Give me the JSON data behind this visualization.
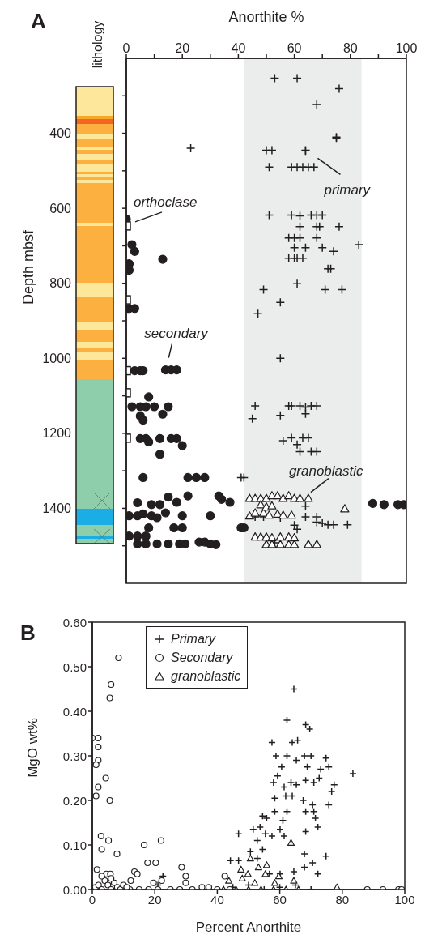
{
  "chart_data": [
    {
      "type": "scatter",
      "title": "A",
      "xlabel": "Anorthite %",
      "ylabel": "Depth mbsf",
      "xlim": [
        0,
        100
      ],
      "xticks": [
        0,
        {
          "value": 10,
          "label": null
        },
        20,
        {
          "value": 30,
          "label": null
        },
        40,
        {
          "value": 50,
          "label": null
        },
        60,
        {
          "value": 70,
          "label": null
        },
        80,
        {
          "value": 90,
          "label": null
        },
        100
      ],
      "ylim": [
        1600,
        200
      ],
      "yticks": [
        {
          "value": 300,
          "label": null
        },
        400,
        {
          "value": 500,
          "label": null
        },
        600,
        {
          "value": 700,
          "label": null
        },
        800,
        {
          "value": 900,
          "label": null
        },
        1000,
        {
          "value": 1100,
          "label": null
        },
        1200,
        {
          "value": 1300,
          "label": null
        },
        1400,
        {
          "value": 1500,
          "label": null
        }
      ],
      "bands": [
        {
          "axis": "x",
          "from": 42,
          "to": 84,
          "color": "#ebeded"
        }
      ],
      "annotations": [
        "lithology",
        {
          "text": "orthoclase",
          "x": 0,
          "y": 647
        },
        {
          "text": "primary",
          "x": 64,
          "y": 445
        },
        {
          "text": "secondary",
          "x": 16,
          "y": 1031
        },
        {
          "text": "granoblastic",
          "x": 65,
          "y": 1370
        }
      ],
      "series": [
        {
          "marker": "cross",
          "color": "#231f20",
          "x": [
            53,
            61,
            76,
            68,
            75,
            75,
            23,
            50,
            52,
            64,
            64,
            51,
            59,
            61,
            63,
            65,
            67,
            51,
            59,
            62,
            66,
            68,
            70,
            62,
            68,
            69,
            76,
            58,
            60,
            62,
            68,
            83,
            60,
            64,
            70,
            74,
            58,
            60,
            61,
            63,
            72,
            73,
            61,
            49,
            71,
            77,
            55,
            47,
            55,
            46,
            45,
            55,
            58,
            59,
            62,
            64,
            66,
            68,
            64,
            56,
            59,
            61,
            63,
            65,
            62,
            66,
            68,
            41,
            42,
            64,
            64,
            68,
            68,
            70,
            72,
            74,
            79,
            60,
            61,
            46,
            49,
            55,
            53
          ],
          "values": [
            253,
            253,
            281,
            323,
            410,
            412,
            440,
            445,
            445,
            445,
            447,
            490,
            490,
            490,
            490,
            490,
            490,
            618,
            618,
            620,
            618,
            618,
            618,
            649,
            649,
            649,
            649,
            679,
            679,
            679,
            679,
            697,
            705,
            705,
            705,
            715,
            733,
            733,
            733,
            733,
            761,
            761,
            801,
            817,
            817,
            817,
            851,
            881,
            1000,
            1127,
            1161,
            1152,
            1127,
            1127,
            1127,
            1130,
            1127,
            1127,
            1148,
            1220,
            1212,
            1230,
            1212,
            1212,
            1249,
            1249,
            1249,
            1318,
            1318,
            1394,
            1423,
            1423,
            1437,
            1440,
            1444,
            1444,
            1444,
            1445,
            1456,
            1423,
            1423,
            1425,
            1492
          ]
        },
        {
          "marker": "circle",
          "color": "#231f20",
          "x": [
            0,
            2,
            3,
            13,
            1,
            1,
            1,
            3,
            3,
            5,
            6,
            14,
            16,
            18,
            8,
            2,
            5,
            7,
            10,
            15,
            13,
            5,
            6,
            5,
            7,
            8,
            12,
            16,
            18,
            20,
            12,
            6,
            22,
            25,
            28,
            4,
            9,
            12,
            15,
            18,
            22,
            33,
            34,
            37,
            1,
            4,
            6,
            9,
            11,
            14,
            20,
            30,
            8,
            17,
            20,
            41,
            42,
            1,
            4,
            7,
            4,
            7,
            11,
            15,
            19,
            21,
            26,
            28,
            32,
            30,
            88,
            92,
            97,
            99
          ],
          "values": [
            629,
            697,
            715,
            736,
            748,
            765,
            867,
            867,
            1033,
            1033,
            1033,
            1031,
            1031,
            1031,
            1103,
            1129,
            1129,
            1129,
            1129,
            1129,
            1149,
            1154,
            1165,
            1214,
            1214,
            1223,
            1214,
            1214,
            1214,
            1233,
            1256,
            1318,
            1318,
            1318,
            1318,
            1385,
            1390,
            1390,
            1370,
            1384,
            1367,
            1367,
            1376,
            1384,
            1420,
            1420,
            1415,
            1420,
            1425,
            1412,
            1420,
            1420,
            1452,
            1452,
            1452,
            1452,
            1452,
            1474,
            1474,
            1474,
            1495,
            1495,
            1495,
            1495,
            1495,
            1495,
            1490,
            1490,
            1497,
            1495,
            1387,
            1390,
            1390,
            1390
          ]
        },
        {
          "marker": "square",
          "color": "#231f20",
          "x": [
            0,
            0,
            0,
            0,
            0
          ],
          "values": [
            647,
            844,
            1033,
            1092,
            1213
          ]
        },
        {
          "marker": "triangle",
          "color": "#231f20",
          "x": [
            44,
            46,
            48,
            50,
            52,
            54,
            56,
            58,
            60,
            62,
            65,
            78,
            44,
            46,
            49,
            51,
            54,
            56,
            59,
            48,
            50,
            52,
            46,
            48,
            50,
            52,
            55,
            58,
            60,
            50,
            52,
            55,
            58,
            60,
            65,
            68
          ],
          "values": [
            1373,
            1373,
            1373,
            1373,
            1366,
            1366,
            1373,
            1366,
            1373,
            1373,
            1373,
            1401,
            1420,
            1412,
            1412,
            1418,
            1415,
            1418,
            1418,
            1390,
            1396,
            1393,
            1476,
            1476,
            1476,
            1478,
            1476,
            1476,
            1478,
            1496,
            1496,
            1496,
            1496,
            1496,
            1496,
            1496
          ]
        }
      ]
    },
    {
      "type": "scatter",
      "title": "B",
      "xlabel": "Percent Anorthite",
      "ylabel": "MgO wt%",
      "xlim": [
        0,
        100
      ],
      "xticks": [
        0,
        20,
        40,
        60,
        80,
        100
      ],
      "ylim": [
        0,
        0.6
      ],
      "yticks": [
        {
          "value": 0,
          "label": "0.00"
        },
        {
          "value": 0.1,
          "label": "0.10"
        },
        {
          "value": 0.2,
          "label": "0.20"
        },
        {
          "value": 0.3,
          "label": "0.30"
        },
        {
          "value": 0.4,
          "label": "0.40"
        },
        {
          "value": 0.5,
          "label": "0.50"
        },
        {
          "value": 0.6,
          "label": "0.60"
        }
      ],
      "legend": "top left",
      "series": [
        {
          "name": "Primary",
          "marker": "cross",
          "color": "#231f20",
          "x": [
            64.5,
            62.3,
            68.3,
            69.6,
            57.5,
            64,
            65.7,
            58.8,
            62.3,
            67.9,
            70,
            74.8,
            60.6,
            65.3,
            68.8,
            73.1,
            75.7,
            83.4,
            58,
            59.3,
            61.4,
            63.6,
            65.3,
            68.3,
            70.9,
            72.6,
            77.4,
            76.6,
            58.4,
            61.9,
            64,
            67.5,
            70.5,
            75.7,
            58.4,
            62.3,
            68.3,
            70.9,
            54.5,
            55.8,
            61,
            71.4,
            51.5,
            53.7,
            60.1,
            72.2,
            46.8,
            68.3,
            55.4,
            52.8,
            57.5,
            61.4,
            50.6,
            54.5,
            44.2,
            46.8,
            52.8,
            67.9,
            74.8,
            70.5,
            67.9,
            72.2,
            22.6,
            64.5,
            60.1,
            56.7,
            42,
            45,
            50,
            55,
            60,
            65,
            70,
            21
          ],
          "values": [
            0.45,
            0.38,
            0.37,
            0.36,
            0.33,
            0.33,
            0.335,
            0.3,
            0.3,
            0.3,
            0.3,
            0.295,
            0.275,
            0.29,
            0.275,
            0.27,
            0.275,
            0.26,
            0.24,
            0.255,
            0.23,
            0.24,
            0.235,
            0.245,
            0.24,
            0.25,
            0.235,
            0.22,
            0.205,
            0.21,
            0.21,
            0.2,
            0.19,
            0.19,
            0.175,
            0.175,
            0.175,
            0.175,
            0.165,
            0.16,
            0.155,
            0.16,
            0.135,
            0.14,
            0.135,
            0.14,
            0.125,
            0.13,
            0.125,
            0.11,
            0.12,
            0.12,
            0.085,
            0.09,
            0.065,
            0.065,
            0.07,
            0.08,
            0.075,
            0.06,
            0.05,
            0.035,
            0.03,
            0.04,
            0.035,
            0.035,
            0,
            0.005,
            0.01,
            0,
            0.005,
            0.01,
            0,
            0.01
          ]
        },
        {
          "name": "Secondary",
          "marker": "circle",
          "color": "#231f20",
          "x": [
            0,
            1.9,
            1.9,
            1.9,
            1.2,
            1.9,
            1.2,
            4.3,
            5.6,
            6,
            5.6,
            8.4,
            2.8,
            5.2,
            3,
            7.9,
            16.6,
            22,
            17.7,
            20.3,
            28.6,
            29.9,
            29.9,
            13.5,
            14.4,
            1.5,
            4.5,
            5.8,
            12.3,
            19.6,
            22.2,
            35.1,
            37.3,
            42.4,
            1,
            2,
            3,
            4,
            5,
            6,
            7,
            8,
            9,
            10,
            12,
            15,
            18,
            21,
            25,
            28,
            32,
            40,
            44,
            88,
            93,
            98,
            99,
            11,
            3,
            6
          ],
          "values": [
            0.34,
            0.34,
            0.32,
            0.29,
            0.28,
            0.23,
            0.21,
            0.25,
            0.2,
            0.46,
            0.43,
            0.52,
            0.12,
            0.11,
            0.09,
            0.08,
            0.1,
            0.11,
            0.06,
            0.06,
            0.05,
            0.03,
            0.015,
            0.04,
            0.035,
            0.045,
            0.035,
            0.035,
            0.02,
            0.015,
            0.02,
            0.005,
            0.005,
            0.03,
            0.005,
            0.01,
            0,
            0.02,
            0.01,
            0,
            0.015,
            0.005,
            0,
            0.01,
            0,
            0,
            0,
            0,
            0,
            0,
            0,
            0,
            0,
            0,
            0,
            0,
            0,
            0.005,
            0.03,
            0.025
          ]
        },
        {
          "name": "granoblastic",
          "marker": "triangle",
          "color": "#231f20",
          "x": [
            63.6,
            47.6,
            50.6,
            53.2,
            55.4,
            59.7,
            64.5,
            43.7,
            48,
            52,
            55.8,
            49.8,
            58.4,
            78.3,
            42,
            46,
            50,
            54,
            58,
            62,
            66
          ],
          "values": [
            0.105,
            0.045,
            0.07,
            0.05,
            0.035,
            0.03,
            0.02,
            0.02,
            0.025,
            0.015,
            0.055,
            0.035,
            0.015,
            0.005,
            0,
            0,
            0,
            0,
            0,
            0,
            0
          ]
        }
      ]
    }
  ]
}
